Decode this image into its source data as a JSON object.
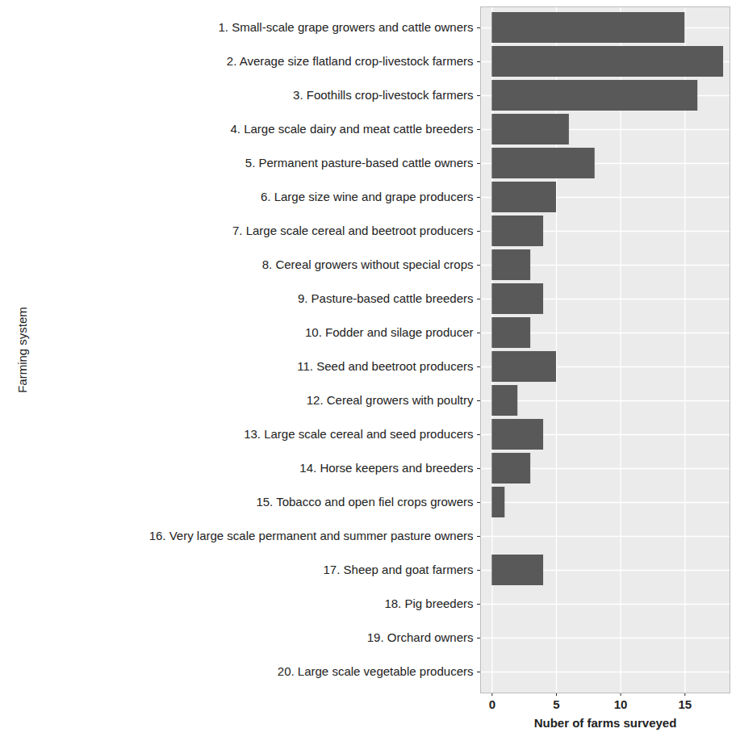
{
  "chart_data": {
    "type": "bar",
    "orientation": "horizontal",
    "x_label": "Nuber of farms surveyed",
    "y_label": "Farming system",
    "categories": [
      "1. Small-scale grape growers and cattle owners",
      "2. Average size flatland crop-livestock farmers",
      "3. Foothills crop-livestock farmers",
      "4. Large scale dairy and meat cattle breeders",
      "5. Permanent pasture-based cattle owners",
      "6. Large size wine and grape producers",
      "7. Large scale cereal and beetroot producers",
      "8. Cereal growers without special crops",
      "9. Pasture-based cattle breeders",
      "10. Fodder and silage producer",
      "11. Seed and beetroot producers",
      "12. Cereal growers with poultry",
      "13. Large scale cereal and seed producers",
      "14. Horse keepers and breeders",
      "15. Tobacco and open fiel crops growers",
      "16. Very large scale permanent and summer pasture owners",
      "17. Sheep and goat farmers",
      "18. Pig breeders",
      "19. Orchard owners",
      "20. Large scale vegetable producers"
    ],
    "values": [
      15,
      18,
      16,
      6,
      8,
      5,
      4,
      3,
      4,
      3,
      5,
      2,
      4,
      3,
      1,
      0,
      4,
      0,
      0,
      0
    ],
    "color": "#595959",
    "xlim": [
      -0.9,
      18.5
    ],
    "xticks": [
      0,
      5,
      10,
      15
    ],
    "grid": true
  }
}
